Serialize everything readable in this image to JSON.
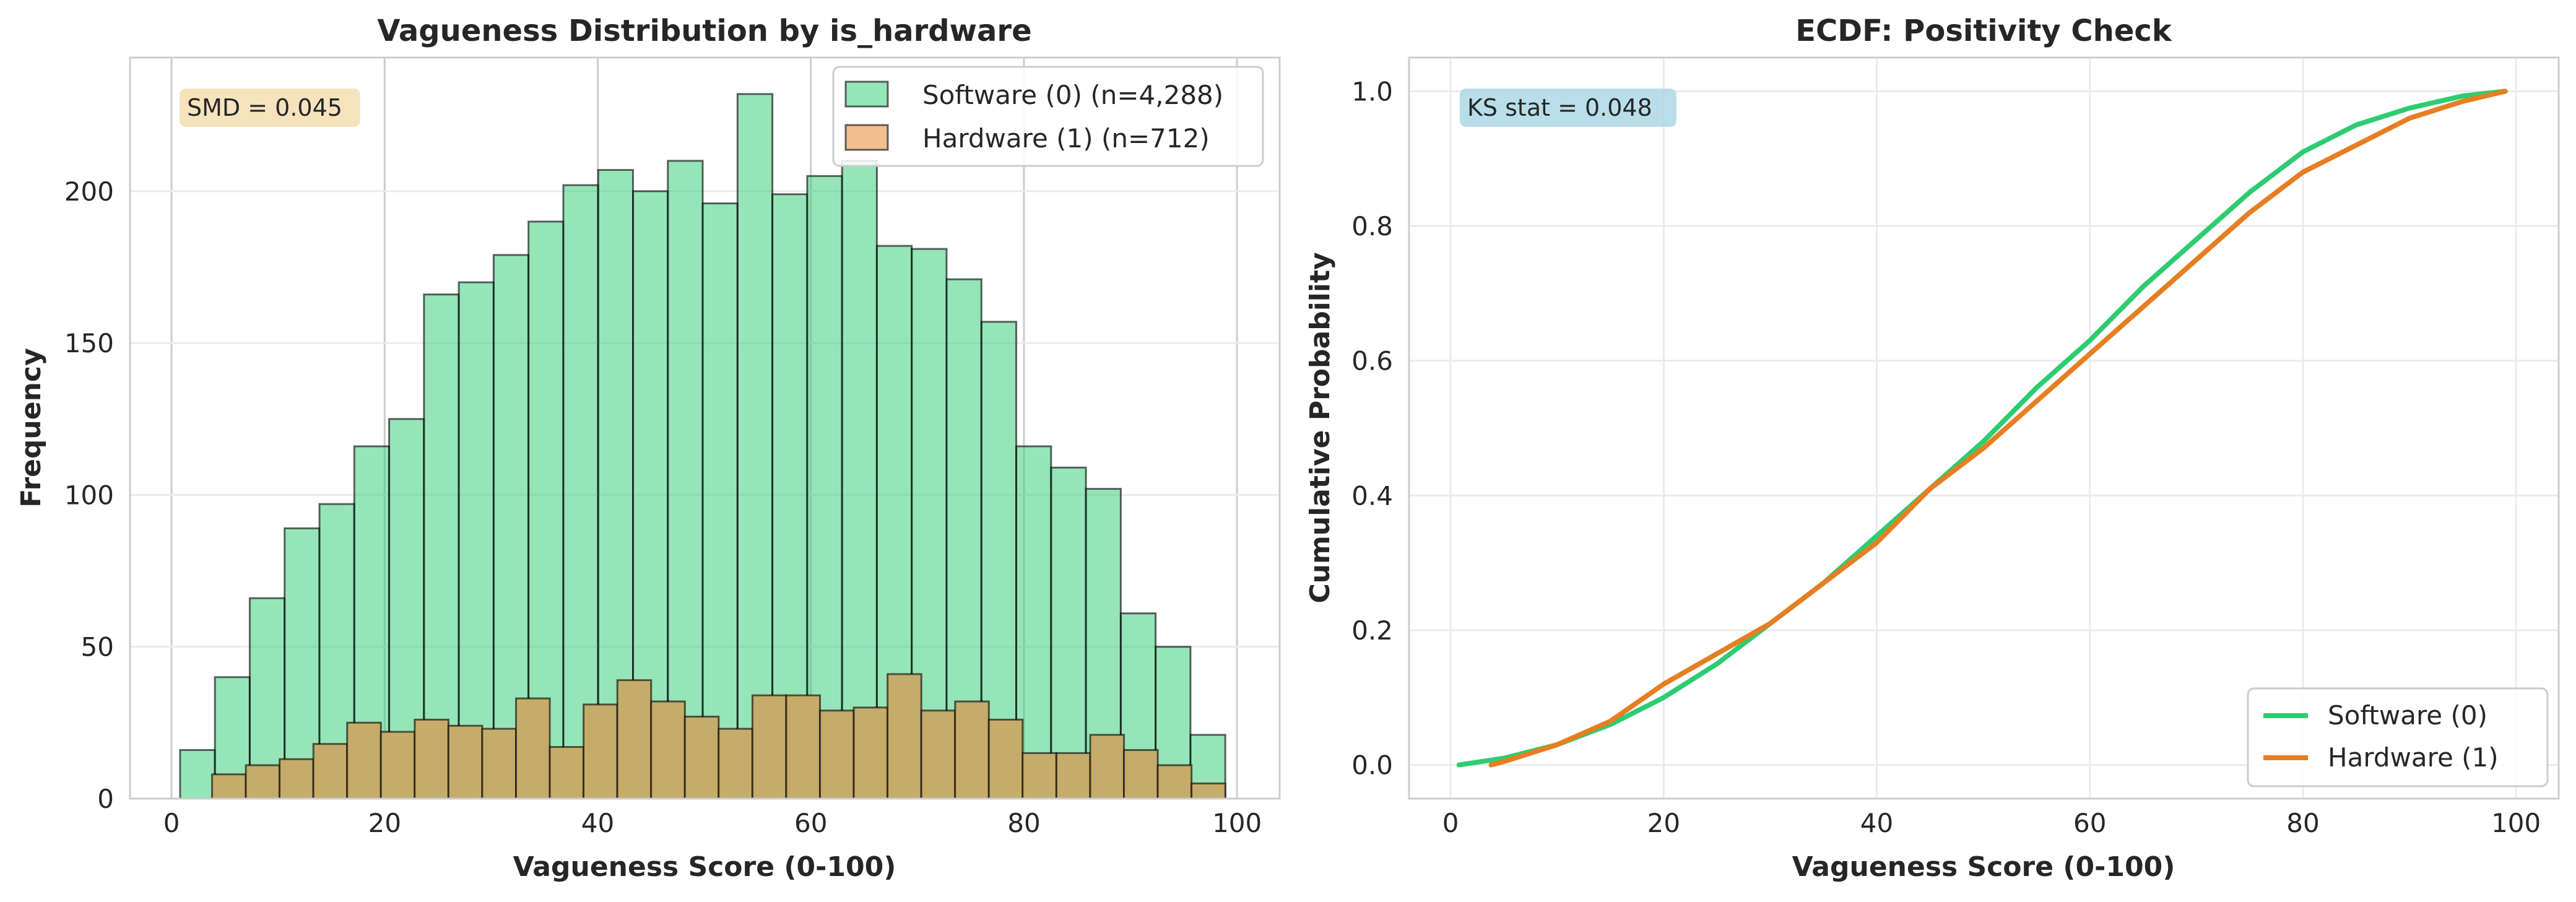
{
  "colors": {
    "software": "#2ecc71",
    "hardware": "#e67e22",
    "hardware_bar": "#c6ac6a",
    "smd_box": "#f5deb3",
    "ks_box": "#add8e6",
    "grid": "#e6e6e6",
    "spine": "#cccccc"
  },
  "chart_data": [
    {
      "type": "bar",
      "title": "Vagueness Distribution by is_hardware",
      "xlabel": "Vagueness Score (0-100)",
      "ylabel": "Frequency",
      "xlim": [
        -3.9,
        104
      ],
      "ylim": [
        0,
        244
      ],
      "xticks": [
        0,
        20,
        40,
        60,
        80,
        100
      ],
      "yticks": [
        0,
        50,
        100,
        150,
        200
      ],
      "grid": true,
      "legend_position": "top-right",
      "annotation": "SMD = 0.045",
      "series": [
        {
          "name": "Software (0) (n=4,288)",
          "color_key": "software",
          "bin_start": 0.8,
          "bin_width": 3.27,
          "values": [
            16,
            40,
            66,
            89,
            97,
            116,
            125,
            166,
            170,
            179,
            190,
            202,
            207,
            200,
            210,
            196,
            232,
            199,
            205,
            210,
            182,
            181,
            171,
            157,
            116,
            109,
            102,
            61,
            50,
            21
          ]
        },
        {
          "name": "Hardware (1) (n=712)",
          "color_key": "hardware_bar",
          "bin_start": 3.8,
          "bin_width": 3.17,
          "values": [
            8,
            11,
            13,
            18,
            25,
            22,
            26,
            24,
            23,
            33,
            17,
            31,
            39,
            32,
            27,
            23,
            34,
            34,
            29,
            30,
            41,
            29,
            32,
            26,
            15,
            15,
            21,
            16,
            11,
            5
          ]
        }
      ]
    },
    {
      "type": "line",
      "title": "ECDF: Positivity Check",
      "xlabel": "Vagueness Score (0-100)",
      "ylabel": "Cumulative Probability",
      "xlim": [
        -3.9,
        104
      ],
      "ylim": [
        -0.05,
        1.05
      ],
      "xticks": [
        0,
        20,
        40,
        60,
        80,
        100
      ],
      "yticks": [
        0.0,
        0.2,
        0.4,
        0.6,
        0.8,
        1.0
      ],
      "grid": true,
      "legend_position": "bottom-right",
      "annotation": "KS stat = 0.048",
      "series": [
        {
          "name": "Software (0)",
          "color_key": "software",
          "x": [
            0.8,
            5,
            10,
            15,
            20,
            25,
            30,
            35,
            40,
            45,
            50,
            55,
            60,
            65,
            70,
            75,
            80,
            85,
            90,
            95,
            99
          ],
          "y": [
            0.0,
            0.01,
            0.03,
            0.06,
            0.1,
            0.15,
            0.21,
            0.27,
            0.34,
            0.41,
            0.48,
            0.56,
            0.63,
            0.71,
            0.78,
            0.85,
            0.91,
            0.95,
            0.975,
            0.993,
            1.0
          ]
        },
        {
          "name": "Hardware (1)",
          "color_key": "hardware",
          "x": [
            3.8,
            5,
            10,
            15,
            20,
            25,
            30,
            35,
            40,
            45,
            50,
            55,
            60,
            65,
            70,
            75,
            80,
            85,
            90,
            95,
            99
          ],
          "y": [
            0.0,
            0.005,
            0.03,
            0.065,
            0.12,
            0.165,
            0.21,
            0.27,
            0.33,
            0.41,
            0.47,
            0.54,
            0.61,
            0.68,
            0.75,
            0.82,
            0.88,
            0.92,
            0.96,
            0.985,
            1.0
          ]
        }
      ]
    }
  ]
}
